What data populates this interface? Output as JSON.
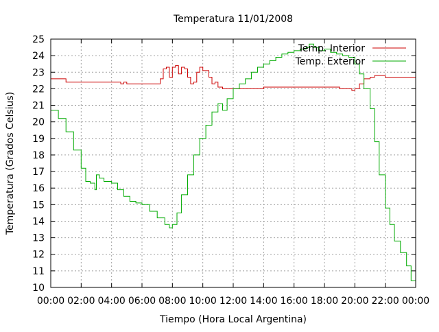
{
  "chart_data": {
    "type": "line",
    "title": "Temperatura 11/01/2008",
    "xlabel": "Tiempo (Hora Local Argentina)",
    "ylabel": "Temperatura (Grados Celsius)",
    "xlim": [
      0,
      24
    ],
    "ylim": [
      10,
      25
    ],
    "grid": true,
    "legend_position": "top-right",
    "x_ticks": [
      {
        "value": 0,
        "label": "00:00"
      },
      {
        "value": 2,
        "label": "02:00"
      },
      {
        "value": 4,
        "label": "04:00"
      },
      {
        "value": 6,
        "label": "06:00"
      },
      {
        "value": 8,
        "label": "08:00"
      },
      {
        "value": 10,
        "label": "10:00"
      },
      {
        "value": 12,
        "label": "12:00"
      },
      {
        "value": 14,
        "label": "14:00"
      },
      {
        "value": 16,
        "label": "16:00"
      },
      {
        "value": 18,
        "label": "18:00"
      },
      {
        "value": 20,
        "label": "20:00"
      },
      {
        "value": 22,
        "label": "22:00"
      },
      {
        "value": 24,
        "label": "00:00"
      }
    ],
    "y_ticks": [
      10,
      11,
      12,
      13,
      14,
      15,
      16,
      17,
      18,
      19,
      20,
      21,
      22,
      23,
      24,
      25
    ],
    "series": [
      {
        "name": "Temp. Interior",
        "color": "#cc0000",
        "x": [
          0,
          1.0,
          1.0,
          2.0,
          4.0,
          4.6,
          4.8,
          5.0,
          6.0,
          7.0,
          7.2,
          7.4,
          7.6,
          7.8,
          8.0,
          8.2,
          8.4,
          8.6,
          8.8,
          9.0,
          9.2,
          9.4,
          9.6,
          9.8,
          10.0,
          10.2,
          10.4,
          10.6,
          10.8,
          11.0,
          11.3,
          11.6,
          12.0,
          13.0,
          14.0,
          15.0,
          16.0,
          17.0,
          18.0,
          19.0,
          19.5,
          19.8,
          20.0,
          20.3,
          20.6,
          21.0,
          21.3,
          22.0,
          23.0,
          24.0
        ],
        "y": [
          22.6,
          22.6,
          22.4,
          22.4,
          22.4,
          22.3,
          22.4,
          22.3,
          22.3,
          22.3,
          22.6,
          23.2,
          23.3,
          22.7,
          23.3,
          23.4,
          22.9,
          23.3,
          23.2,
          22.7,
          22.3,
          22.4,
          23.0,
          23.3,
          23.1,
          23.1,
          22.7,
          22.3,
          22.4,
          22.1,
          22.0,
          22.0,
          22.0,
          22.0,
          22.1,
          22.1,
          22.1,
          22.1,
          22.1,
          22.0,
          22.0,
          21.9,
          22.0,
          22.3,
          22.6,
          22.7,
          22.8,
          22.7,
          22.7,
          22.8
        ]
      },
      {
        "name": "Temp. Exterior",
        "color": "#00aa00",
        "x": [
          0,
          0.5,
          1.0,
          1.5,
          2.0,
          2.3,
          2.6,
          2.9,
          3.0,
          3.2,
          3.5,
          4.0,
          4.4,
          4.8,
          5.2,
          5.6,
          6.0,
          6.5,
          7.0,
          7.5,
          7.8,
          8.0,
          8.3,
          8.6,
          9.0,
          9.4,
          9.8,
          10.2,
          10.6,
          11.0,
          11.3,
          11.6,
          12.0,
          12.4,
          12.8,
          13.2,
          13.6,
          14.0,
          14.4,
          14.8,
          15.2,
          15.6,
          16.0,
          16.4,
          16.8,
          17.0,
          17.3,
          17.6,
          18.0,
          18.4,
          18.8,
          19.2,
          19.6,
          20.0,
          20.3,
          20.6,
          21.0,
          21.3,
          21.6,
          22.0,
          22.3,
          22.6,
          23.0,
          23.4,
          23.7,
          24.0
        ],
        "y": [
          20.7,
          20.2,
          19.4,
          18.3,
          17.2,
          16.4,
          16.3,
          15.9,
          16.8,
          16.6,
          16.4,
          16.3,
          15.9,
          15.5,
          15.2,
          15.1,
          15.0,
          14.6,
          14.2,
          13.8,
          13.6,
          13.8,
          14.5,
          15.6,
          16.8,
          18.0,
          19.0,
          19.8,
          20.6,
          21.1,
          20.7,
          21.4,
          22.0,
          22.3,
          22.6,
          23.0,
          23.3,
          23.5,
          23.7,
          23.9,
          24.1,
          24.2,
          24.3,
          24.4,
          24.5,
          24.7,
          24.5,
          24.3,
          24.4,
          24.2,
          24.1,
          24.0,
          23.9,
          23.5,
          22.9,
          22.0,
          20.8,
          18.8,
          16.8,
          14.8,
          13.8,
          12.8,
          12.1,
          11.3,
          10.4,
          10.0
        ]
      }
    ]
  }
}
